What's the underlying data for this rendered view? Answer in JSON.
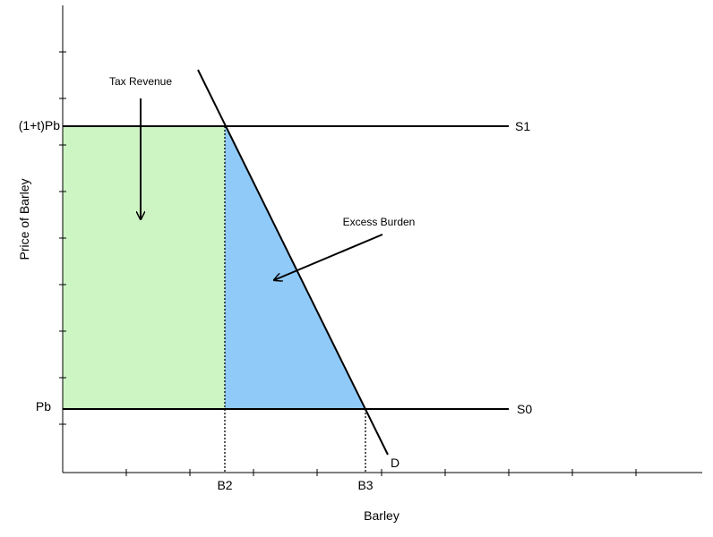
{
  "colors": {
    "tax_revenue_fill": "#cdf5c3",
    "excess_burden_fill": "#90caf9",
    "line": "#000000",
    "background": "#ffffff"
  },
  "axes": {
    "x_label": "Barley",
    "y_label": "Price of Barley"
  },
  "price_levels": {
    "high": "(1+t)Pb",
    "low": "Pb"
  },
  "quantity_levels": {
    "q_taxed": "B2",
    "q_untaxed": "B3"
  },
  "curves": {
    "supply_taxed": "S1",
    "supply_untaxed": "S0",
    "demand": "D"
  },
  "annotations": {
    "tax_revenue": "Tax Revenue",
    "excess_burden": "Excess Burden"
  }
}
